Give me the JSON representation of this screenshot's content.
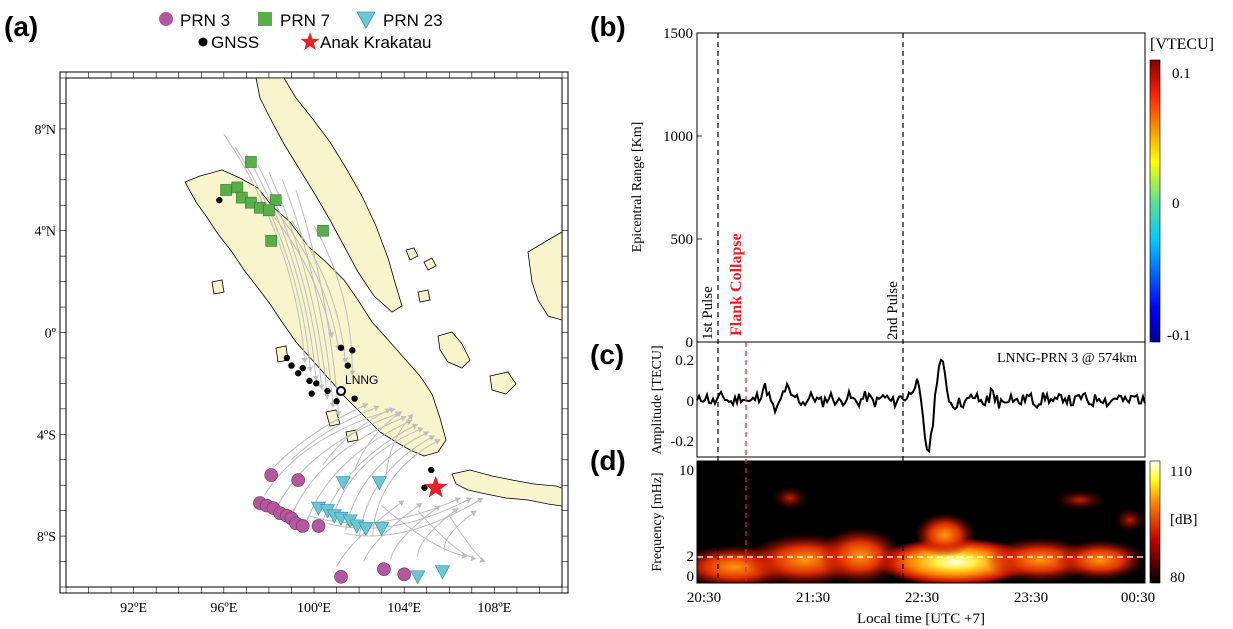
{
  "chart_data": [
    {
      "panel": "(a)",
      "type": "map",
      "legend": [
        {
          "label": "PRN 3",
          "marker": "circle",
          "color": "#b2589f"
        },
        {
          "label": "PRN 7",
          "marker": "square",
          "color": "#5aae4a"
        },
        {
          "label": "PRN 23",
          "marker": "triangle-down",
          "color": "#6cc6d8"
        },
        {
          "label": "GNSS",
          "marker": "dot",
          "color": "#000000"
        },
        {
          "label": "Anak Krakatau",
          "marker": "star",
          "color": "#e8202a"
        }
      ],
      "station_label": "LNNG",
      "x_ticks": [
        "92ºE",
        "96ºE",
        "100ºE",
        "104ºE",
        "108ºE"
      ],
      "x_tick_values": [
        92,
        96,
        100,
        104,
        108
      ],
      "y_ticks": [
        "8ºN",
        "4ºN",
        "0º",
        "4ºS",
        "8ºS"
      ],
      "y_tick_values": [
        8,
        4,
        0,
        -4,
        -8
      ],
      "xlim": [
        89,
        111
      ],
      "ylim": [
        -10,
        10
      ],
      "volcano": [
        105.4,
        -6.1
      ],
      "lnng": [
        101.2,
        -2.3
      ],
      "gnss": [
        [
          95.8,
          5.2
        ],
        [
          101.2,
          -0.6
        ],
        [
          101.7,
          -0.7
        ],
        [
          101.5,
          -1.3
        ],
        [
          98.8,
          -1.0
        ],
        [
          99.0,
          -1.3
        ],
        [
          99.3,
          -1.6
        ],
        [
          99.5,
          -1.4
        ],
        [
          99.8,
          -1.9
        ],
        [
          100.1,
          -2.0
        ],
        [
          99.9,
          -2.4
        ],
        [
          100.6,
          -2.3
        ],
        [
          101.0,
          -2.7
        ],
        [
          101.8,
          -2.6
        ],
        [
          105.2,
          -5.4
        ],
        [
          104.9,
          -6.1
        ]
      ],
      "prn7": [
        [
          97.2,
          6.7
        ],
        [
          96.1,
          5.6
        ],
        [
          96.6,
          5.7
        ],
        [
          96.8,
          5.3
        ],
        [
          97.2,
          5.1
        ],
        [
          97.6,
          4.9
        ],
        [
          98.3,
          5.2
        ],
        [
          98.0,
          4.8
        ],
        [
          98.1,
          3.6
        ],
        [
          100.4,
          4.0
        ]
      ],
      "prn3": [
        [
          98.1,
          -5.6
        ],
        [
          99.3,
          -5.8
        ],
        [
          97.6,
          -6.7
        ],
        [
          97.9,
          -6.8
        ],
        [
          98.2,
          -6.9
        ],
        [
          98.5,
          -7.1
        ],
        [
          98.8,
          -7.2
        ],
        [
          99.0,
          -7.3
        ],
        [
          99.2,
          -7.5
        ],
        [
          99.5,
          -7.6
        ],
        [
          100.2,
          -7.6
        ],
        [
          101.2,
          -9.6
        ],
        [
          103.1,
          -9.3
        ],
        [
          104.0,
          -9.5
        ]
      ],
      "prn23": [
        [
          101.3,
          -5.9
        ],
        [
          102.9,
          -5.9
        ],
        [
          100.2,
          -6.9
        ],
        [
          100.6,
          -7.0
        ],
        [
          100.9,
          -7.2
        ],
        [
          101.2,
          -7.3
        ],
        [
          101.6,
          -7.4
        ],
        [
          101.9,
          -7.6
        ],
        [
          102.3,
          -7.7
        ],
        [
          103.0,
          -7.7
        ],
        [
          104.6,
          -9.6
        ],
        [
          105.7,
          -9.4
        ]
      ]
    },
    {
      "panel": "(b)",
      "type": "scatter",
      "ylabel": "Epicentral Range [Km]",
      "y_ticks": [
        0,
        500,
        1000,
        1500
      ],
      "ylim": [
        0,
        1500
      ],
      "colorbar_title": "[VTECU]",
      "colorbar_ticks": [
        "0.1",
        "0",
        "-0.1"
      ],
      "colorbar_range": [
        -0.1,
        0.1
      ],
      "annotations": [
        "1st Pulse",
        "Flank Collapse",
        "2nd Pulse"
      ]
    },
    {
      "panel": "(c)",
      "type": "line",
      "ylabel": "Amplitude [TECU]",
      "y_ticks": [
        "0.2",
        "0",
        "-0.2"
      ],
      "ylim": [
        -0.25,
        0.25
      ],
      "series_label": "LNNG-PRN 3 @  574km"
    },
    {
      "panel": "(d)",
      "type": "heatmap",
      "ylabel": "Frequency [mHz]",
      "y_ticks": [
        "10",
        "2",
        "0"
      ],
      "xlabel": "Local time [UTC +7]",
      "x_ticks": [
        "20:30",
        "21:30",
        "22:30",
        "23:30",
        "00:30"
      ],
      "colorbar_ticks": [
        "110",
        "[dB]",
        "80"
      ],
      "colorbar_range": [
        80,
        110
      ]
    }
  ],
  "labels": {
    "a": "(a)",
    "b": "(b)",
    "c": "(c)",
    "d": "(d)"
  }
}
